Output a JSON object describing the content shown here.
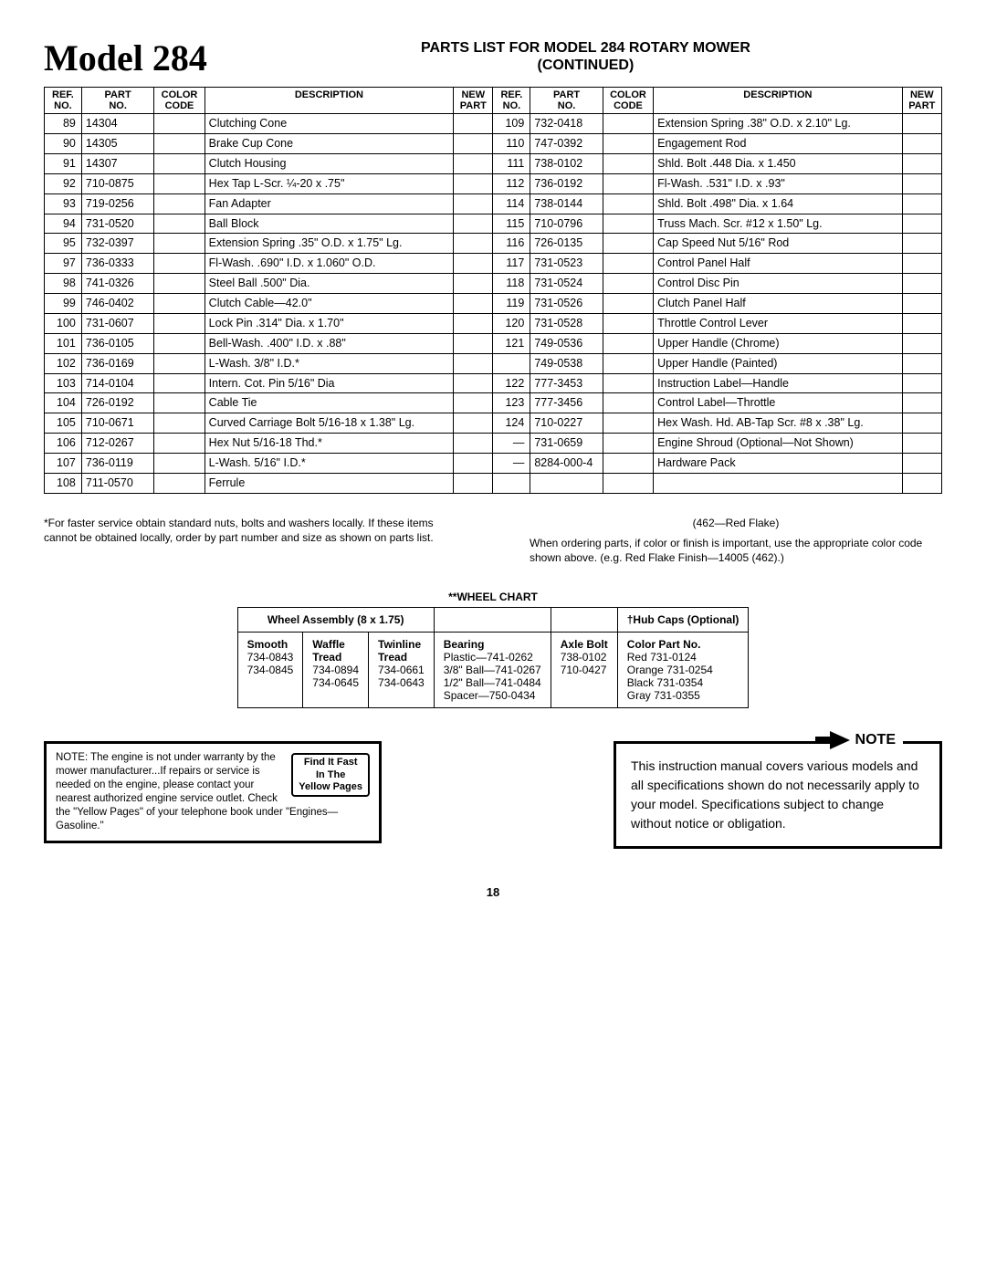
{
  "header": {
    "model": "Model 284",
    "title_line1": "PARTS LIST FOR MODEL 284 ROTARY MOWER",
    "title_line2": "(CONTINUED)"
  },
  "columns": {
    "ref": "REF.\nNO.",
    "part": "PART\nNO.",
    "color": "COLOR\nCODE",
    "desc": "DESCRIPTION",
    "new": "NEW\nPART"
  },
  "left_rows": [
    {
      "ref": "89",
      "part": "14304",
      "desc": "Clutching Cone"
    },
    {
      "ref": "90",
      "part": "14305",
      "desc": "Brake Cup Cone"
    },
    {
      "ref": "91",
      "part": "14307",
      "desc": "Clutch Housing"
    },
    {
      "ref": "92",
      "part": "710-0875",
      "desc": "Hex Tap L-Scr. ¼-20 x .75\""
    },
    {
      "ref": "93",
      "part": "719-0256",
      "desc": "Fan Adapter"
    },
    {
      "ref": "94",
      "part": "731-0520",
      "desc": "Ball Block"
    },
    {
      "ref": "95",
      "part": "732-0397",
      "desc": "Extension Spring .35\" O.D. x 1.75\" Lg."
    },
    {
      "ref": "97",
      "part": "736-0333",
      "desc": "Fl-Wash. .690\" I.D. x 1.060\" O.D."
    },
    {
      "ref": "98",
      "part": "741-0326",
      "desc": "Steel Ball .500\" Dia."
    },
    {
      "ref": "99",
      "part": "746-0402",
      "desc": "Clutch Cable—42.0\""
    },
    {
      "ref": "100",
      "part": "731-0607",
      "desc": "Lock Pin .314\" Dia. x 1.70\""
    },
    {
      "ref": "101",
      "part": "736-0105",
      "desc": "Bell-Wash. .400\" I.D. x .88\""
    },
    {
      "ref": "102",
      "part": "736-0169",
      "desc": "L-Wash. 3/8\" I.D.*"
    },
    {
      "ref": "103",
      "part": "714-0104",
      "desc": "Intern. Cot. Pin 5/16\" Dia"
    },
    {
      "ref": "104",
      "part": "726-0192",
      "desc": "Cable Tie"
    },
    {
      "ref": "105",
      "part": "710-0671",
      "desc": "Curved Carriage Bolt 5/16-18 x 1.38\" Lg."
    },
    {
      "ref": "106",
      "part": "712-0267",
      "desc": "Hex Nut 5/16-18 Thd.*"
    },
    {
      "ref": "107",
      "part": "736-0119",
      "desc": "L-Wash. 5/16\" I.D.*"
    },
    {
      "ref": "108",
      "part": "711-0570",
      "desc": "Ferrule"
    }
  ],
  "right_rows": [
    {
      "ref": "109",
      "part": "732-0418",
      "desc": "Extension Spring .38\" O.D. x 2.10\" Lg."
    },
    {
      "ref": "110",
      "part": "747-0392",
      "desc": "Engagement Rod"
    },
    {
      "ref": "111",
      "part": "738-0102",
      "desc": "Shld. Bolt .448 Dia. x 1.450"
    },
    {
      "ref": "112",
      "part": "736-0192",
      "desc": "Fl-Wash. .531\" I.D. x .93\""
    },
    {
      "ref": "114",
      "part": "738-0144",
      "desc": "Shld. Bolt .498\" Dia. x 1.64"
    },
    {
      "ref": "115",
      "part": "710-0796",
      "desc": "Truss Mach. Scr. #12 x 1.50\" Lg."
    },
    {
      "ref": "116",
      "part": "726-0135",
      "desc": "Cap Speed Nut 5/16\" Rod"
    },
    {
      "ref": "117",
      "part": "731-0523",
      "desc": "Control Panel Half"
    },
    {
      "ref": "118",
      "part": "731-0524",
      "desc": "Control Disc Pin"
    },
    {
      "ref": "119",
      "part": "731-0526",
      "desc": "Clutch Panel Half"
    },
    {
      "ref": "120",
      "part": "731-0528",
      "desc": "Throttle Control Lever"
    },
    {
      "ref": "121",
      "part": "749-0536",
      "desc": "Upper Handle (Chrome)"
    },
    {
      "ref": "",
      "part": "749-0538",
      "desc": "Upper Handle (Painted)"
    },
    {
      "ref": "122",
      "part": "777-3453",
      "desc": "Instruction Label—Handle"
    },
    {
      "ref": "123",
      "part": "777-3456",
      "desc": "Control Label—Throttle"
    },
    {
      "ref": "124",
      "part": "710-0227",
      "desc": "Hex Wash. Hd. AB-Tap Scr. #8 x .38\" Lg."
    },
    {
      "ref": "—",
      "part": "731-0659",
      "desc": "Engine Shroud (Optional—Not Shown)"
    },
    {
      "ref": "—",
      "part": "8284-000-4",
      "desc": "Hardware Pack"
    }
  ],
  "footnote_left": "*For faster service obtain standard nuts, bolts and washers locally. If these items cannot be obtained locally, order by part number and size as shown on parts list.",
  "footnote_right_top": "(462—Red Flake)",
  "footnote_right": "When ordering parts, if color or finish is important, use the appropriate color code shown above. (e.g. Red Flake Finish—14005 (462).)",
  "wheel": {
    "title": "**WHEEL CHART",
    "assembly_header": "Wheel Assembly (8 x 1.75)",
    "hub_header": "†Hub Caps (Optional)",
    "smooth": {
      "h": "Smooth",
      "v": "734-0843\n734-0845"
    },
    "waffle": {
      "h": "Waffle\nTread",
      "v": "734-0894\n734-0645"
    },
    "twin": {
      "h": "Twinline\nTread",
      "v": "734-0661\n734-0643"
    },
    "bearing": {
      "h": "Bearing",
      "v": "Plastic—741-0262\n3/8\" Ball—741-0267\n1/2\" Ball—741-0484\nSpacer—750-0434"
    },
    "axle": {
      "h": "Axle Bolt",
      "v": "738-0102\n710-0427"
    },
    "hub": {
      "h": "Color        Part No.",
      "v": "Red            731-0124\nOrange      731-0254\nBlack         731-0354\nGray          731-0355"
    }
  },
  "engine_note": {
    "text": "NOTE: The engine is not under warranty by the mower manufacturer...If repairs or service is needed on the engine, please contact your nearest authorized engine service outlet. Check the \"Yellow Pages\" of your telephone book under \"Engines—Gasoline.\"",
    "yp": "Find It Fast\nIn The\nYellow Pages"
  },
  "manual_note": {
    "head": "NOTE",
    "text": "This instruction manual covers various models and all specifications shown do not necessarily apply to your model. Specifications subject to change without notice or obligation."
  },
  "page": "18"
}
